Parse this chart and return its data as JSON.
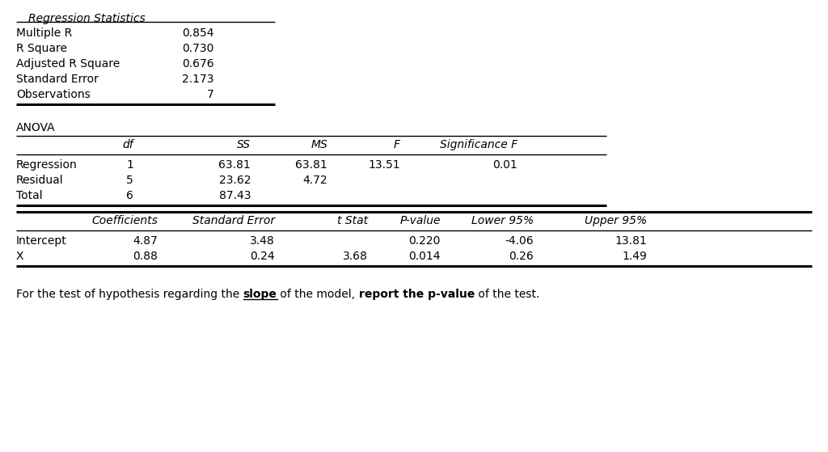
{
  "background_color": "#ffffff",
  "reg_stats_title": "Regression Statistics",
  "reg_stats_rows": [
    [
      "Multiple R",
      "0.854"
    ],
    [
      "R Square",
      "0.730"
    ],
    [
      "Adjusted R Square",
      "0.676"
    ],
    [
      "Standard Error",
      "2.173"
    ],
    [
      "Observations",
      "7"
    ]
  ],
  "anova_title": "ANOVA",
  "anova_headers": [
    "",
    "df",
    "SS",
    "MS",
    "F",
    "Significance F"
  ],
  "anova_rows": [
    [
      "Regression",
      "1",
      "63.81",
      "63.81",
      "13.51",
      "0.01"
    ],
    [
      "Residual",
      "5",
      "23.62",
      "4.72",
      "",
      ""
    ],
    [
      "Total",
      "6",
      "87.43",
      "",
      "",
      ""
    ]
  ],
  "coeff_headers": [
    "",
    "Coefficients",
    "Standard Error",
    "t Stat",
    "P-value",
    "Lower 95%",
    "Upper 95%"
  ],
  "coeff_rows": [
    [
      "Intercept",
      "4.87",
      "3.48",
      "",
      "0.220",
      "-4.06",
      "13.81"
    ],
    [
      "X",
      "0.88",
      "0.24",
      "3.68",
      "0.014",
      "0.26",
      "1.49"
    ]
  ],
  "footer_parts": [
    {
      "text": "For the test of hypothesis regarding the ",
      "bold": false,
      "underline": false
    },
    {
      "text": "slope",
      "bold": true,
      "underline": true
    },
    {
      "text": " of the model, ",
      "bold": false,
      "underline": false
    },
    {
      "text": "report the p-value",
      "bold": true,
      "underline": false
    },
    {
      "text": " of the test.",
      "bold": false,
      "underline": false
    }
  ],
  "font_size": 10,
  "lw_thin": 1.0,
  "lw_thick": 2.2
}
